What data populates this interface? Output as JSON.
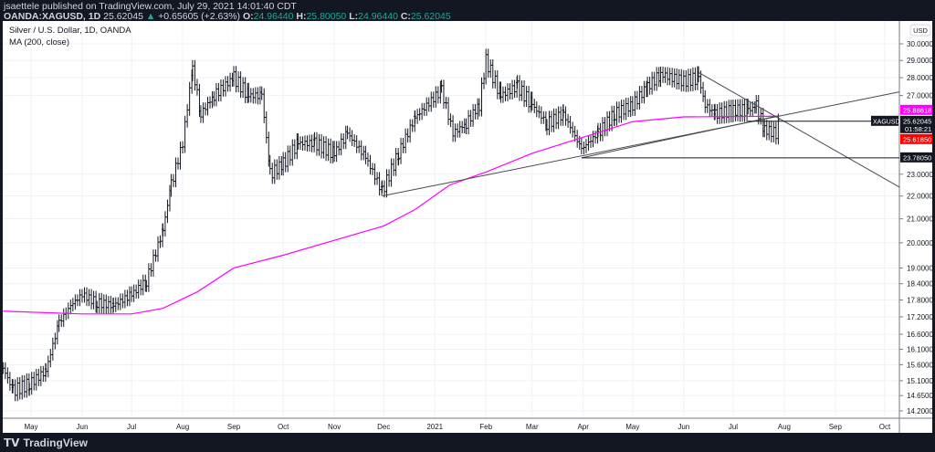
{
  "header": {
    "publisher": "jsaettele published on TradingView.com, July 29, 2021 14:01:40 CDT",
    "symbol": "OANDA:XAGUSD, 1D",
    "last": "25.62045",
    "change": "+0.65605 (+2.63%)",
    "open_label": "O:",
    "open": "24.96440",
    "high_label": "H:",
    "high": "25.80050",
    "low_label": "L:",
    "low": "24.96440",
    "close_label": "C:",
    "close": "25.62045"
  },
  "chart_title": "Silver / U.S. Dollar, 1D, OANDA",
  "indicator": "MA (200, close)",
  "footer": {
    "brand": "TradingView"
  },
  "colors": {
    "ma": "#ff00ff",
    "bars": "#131722",
    "red_label": "#ff0000",
    "up": "#26a69a"
  },
  "chart_data": {
    "type": "ohlc-bars",
    "scale": "log",
    "currency_badge": "USD",
    "y_ticks": [
      "30.00000",
      "29.00000",
      "28.00000",
      "27.00000",
      "23.00000",
      "22.00000",
      "21.00000",
      "20.00000",
      "19.00000",
      "18.40000",
      "17.80000",
      "17.20000",
      "16.60000",
      "16.10000",
      "15.60000",
      "15.10000",
      "14.65000",
      "14.20000"
    ],
    "x_ticks": [
      {
        "label": "May",
        "date": "2020-05-01"
      },
      {
        "label": "Jun",
        "date": "2020-06-01"
      },
      {
        "label": "Jul",
        "date": "2020-07-01"
      },
      {
        "label": "Aug",
        "date": "2020-08-01"
      },
      {
        "label": "Sep",
        "date": "2020-09-01"
      },
      {
        "label": "Oct",
        "date": "2020-10-01"
      },
      {
        "label": "Nov",
        "date": "2020-11-01"
      },
      {
        "label": "Dec",
        "date": "2020-12-01"
      },
      {
        "label": "2021",
        "date": "2021-01-01"
      },
      {
        "label": "Feb",
        "date": "2021-02-01"
      },
      {
        "label": "Mar",
        "date": "2021-03-01"
      },
      {
        "label": "Apr",
        "date": "2021-04-01"
      },
      {
        "label": "May",
        "date": "2021-05-01"
      },
      {
        "label": "Jun",
        "date": "2021-06-01"
      },
      {
        "label": "Jul",
        "date": "2021-07-01"
      },
      {
        "label": "Aug",
        "date": "2021-08-01"
      },
      {
        "label": "Sep",
        "date": "2021-09-01"
      },
      {
        "label": "Oct",
        "date": "2021-10-01"
      }
    ],
    "closes": [
      [
        "2020-04-14",
        15.5
      ],
      [
        "2020-04-20",
        14.8
      ],
      [
        "2020-04-30",
        15.0
      ],
      [
        "2020-05-10",
        15.4
      ],
      [
        "2020-05-18",
        17.0
      ],
      [
        "2020-05-25",
        17.6
      ],
      [
        "2020-06-01",
        18.0
      ],
      [
        "2020-06-10",
        17.7
      ],
      [
        "2020-06-20",
        17.6
      ],
      [
        "2020-07-01",
        18.0
      ],
      [
        "2020-07-10",
        18.5
      ],
      [
        "2020-07-20",
        20.5
      ],
      [
        "2020-07-25",
        22.5
      ],
      [
        "2020-08-01",
        24.5
      ],
      [
        "2020-08-07",
        28.5
      ],
      [
        "2020-08-12",
        26.0
      ],
      [
        "2020-08-20",
        27.0
      ],
      [
        "2020-09-01",
        28.0
      ],
      [
        "2020-09-10",
        27.0
      ],
      [
        "2020-09-18",
        27.0
      ],
      [
        "2020-09-23",
        23.0
      ],
      [
        "2020-10-01",
        23.5
      ],
      [
        "2020-10-10",
        24.5
      ],
      [
        "2020-10-20",
        24.5
      ],
      [
        "2020-11-01",
        24.0
      ],
      [
        "2020-11-09",
        25.0
      ],
      [
        "2020-11-20",
        23.8
      ],
      [
        "2020-11-30",
        22.2
      ],
      [
        "2020-12-10",
        24.0
      ],
      [
        "2020-12-20",
        25.8
      ],
      [
        "2021-01-05",
        27.3
      ],
      [
        "2021-01-12",
        25.0
      ],
      [
        "2021-01-20",
        25.5
      ],
      [
        "2021-01-28",
        26.5
      ],
      [
        "2021-02-01",
        29.0
      ],
      [
        "2021-02-10",
        27.0
      ],
      [
        "2021-02-20",
        27.5
      ],
      [
        "2021-03-01",
        26.5
      ],
      [
        "2021-03-10",
        25.5
      ],
      [
        "2021-03-20",
        26.0
      ],
      [
        "2021-03-31",
        24.2
      ],
      [
        "2021-04-10",
        25.0
      ],
      [
        "2021-04-20",
        26.0
      ],
      [
        "2021-05-01",
        26.5
      ],
      [
        "2021-05-10",
        27.5
      ],
      [
        "2021-05-18",
        28.2
      ],
      [
        "2021-06-01",
        27.8
      ],
      [
        "2021-06-10",
        28.0
      ],
      [
        "2021-06-14",
        26.5
      ],
      [
        "2021-06-20",
        26.0
      ],
      [
        "2021-07-01",
        26.2
      ],
      [
        "2021-07-10",
        26.2
      ],
      [
        "2021-07-15",
        26.4
      ],
      [
        "2021-07-20",
        25.2
      ],
      [
        "2021-07-27",
        25.0
      ],
      [
        "2021-07-29",
        25.62
      ]
    ],
    "ma200": [
      [
        "2020-04-14",
        17.4
      ],
      [
        "2020-06-01",
        17.3
      ],
      [
        "2020-07-01",
        17.3
      ],
      [
        "2020-07-20",
        17.5
      ],
      [
        "2020-08-10",
        18.1
      ],
      [
        "2020-09-01",
        19.0
      ],
      [
        "2020-10-01",
        19.5
      ],
      [
        "2020-11-01",
        20.1
      ],
      [
        "2020-12-01",
        20.7
      ],
      [
        "2020-12-20",
        21.4
      ],
      [
        "2021-01-10",
        22.5
      ],
      [
        "2021-02-01",
        23.1
      ],
      [
        "2021-03-01",
        24.0
      ],
      [
        "2021-04-01",
        24.8
      ],
      [
        "2021-05-01",
        25.6
      ],
      [
        "2021-06-01",
        25.85
      ],
      [
        "2021-07-29",
        25.886
      ]
    ],
    "trendlines": [
      {
        "from": [
          "2020-11-30",
          22.0
        ],
        "to": [
          "2021-10-10",
          27.2
        ]
      },
      {
        "from": [
          "2021-06-10",
          28.3
        ],
        "to": [
          "2021-10-10",
          22.4
        ]
      },
      {
        "from": [
          "2021-03-31",
          23.78
        ],
        "to": [
          "2021-07-28",
          25.9
        ]
      }
    ],
    "horizontal_lines": [
      {
        "from": "2021-03-31",
        "price": 23.7805
      },
      {
        "from": "2021-07-10",
        "price": 25.62045
      }
    ],
    "price_labels": [
      {
        "text": "25.88618",
        "price": 25.88618,
        "bg": "#ff00ff"
      },
      {
        "text": "25.62045",
        "sub": "01:58:21",
        "price": 25.62045,
        "bg": "#131722",
        "tag": "XAGUSD"
      },
      {
        "text": "25.61850",
        "price": 25.6185,
        "bg": "#ff0000"
      },
      {
        "text": "23.78050",
        "price": 23.7805,
        "bg": "#131722"
      }
    ]
  }
}
